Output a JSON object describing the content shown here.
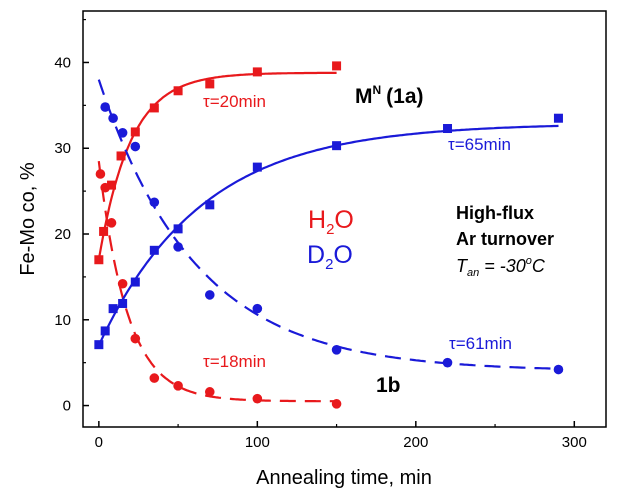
{
  "chart_data": {
    "type": "scatter",
    "xlabel": "Annealing time, min",
    "ylabel": "Fe-Mo co, %",
    "xlim": [
      -10,
      320
    ],
    "ylim": [
      -2.5,
      46
    ],
    "xticks": [
      0,
      100,
      200,
      300
    ],
    "yticks": [
      0,
      10,
      20,
      30,
      40
    ],
    "grid": false,
    "colors": {
      "red": "#e8191c",
      "blue": "#1a1ad8",
      "black": "#000000"
    },
    "series": [
      {
        "color": "red",
        "marker": "square",
        "x": [
          0,
          3,
          8,
          14,
          23,
          35,
          50,
          70,
          100,
          150
        ],
        "y": [
          17.0,
          20.3,
          25.7,
          29.1,
          31.9,
          34.7,
          36.7,
          37.5,
          38.9,
          39.6
        ]
      },
      {
        "color": "red",
        "marker": "circle",
        "x": [
          1,
          4,
          8,
          15,
          23,
          35,
          50,
          70,
          100,
          150
        ],
        "y": [
          27.0,
          25.4,
          21.3,
          14.2,
          7.8,
          3.2,
          2.3,
          1.6,
          0.8,
          0.2
        ]
      },
      {
        "color": "blue",
        "marker": "square",
        "x": [
          0,
          4,
          9,
          15,
          23,
          35,
          50,
          70,
          100,
          150,
          220,
          290
        ],
        "y": [
          7.1,
          8.7,
          11.3,
          11.9,
          14.4,
          18.1,
          20.6,
          23.4,
          27.8,
          30.3,
          32.3,
          33.5
        ]
      },
      {
        "color": "blue",
        "marker": "circle",
        "x": [
          4,
          9,
          15,
          23,
          35,
          50,
          70,
          100,
          150,
          220,
          290
        ],
        "y": [
          34.8,
          33.5,
          31.8,
          30.2,
          23.7,
          18.5,
          12.9,
          11.3,
          6.5,
          5.0,
          4.2
        ]
      }
    ],
    "fits": [
      {
        "color": "red",
        "style": "solid",
        "y0": 17.0,
        "yinf": 38.8,
        "tau": 20,
        "x_end": 150
      },
      {
        "color": "red",
        "style": "dashed",
        "y0": 28.5,
        "yinf": 0.5,
        "tau": 18,
        "x_end": 150
      },
      {
        "color": "blue",
        "style": "solid",
        "y0": 7.0,
        "yinf": 32.9,
        "tau": 65,
        "x_end": 290
      },
      {
        "color": "blue",
        "style": "dashed",
        "y0": 38.0,
        "yinf": 4.0,
        "tau": 61,
        "x_end": 290
      }
    ],
    "annotations": {
      "tau_red_top": "τ=20min",
      "tau_red_bottom": "τ=18min",
      "tau_blue_top": "τ=65min",
      "tau_blue_bottom": "τ=61min",
      "label_1a_main": "M",
      "label_1a_sup": "N",
      "label_1a_tail": "(1a)",
      "label_1b": "1b",
      "h2o_h": "H",
      "h2o_sub": "2",
      "h2o_o": "O",
      "d2o_d": "D",
      "d2o_sub": "2",
      "d2o_o": "O",
      "cond_line1": "High-flux",
      "cond_line2": "Ar turnover",
      "cond_t": "T",
      "cond_t_sub": "an",
      "cond_eq": " = -30",
      "cond_deg": "o",
      "cond_unit": "C"
    }
  }
}
